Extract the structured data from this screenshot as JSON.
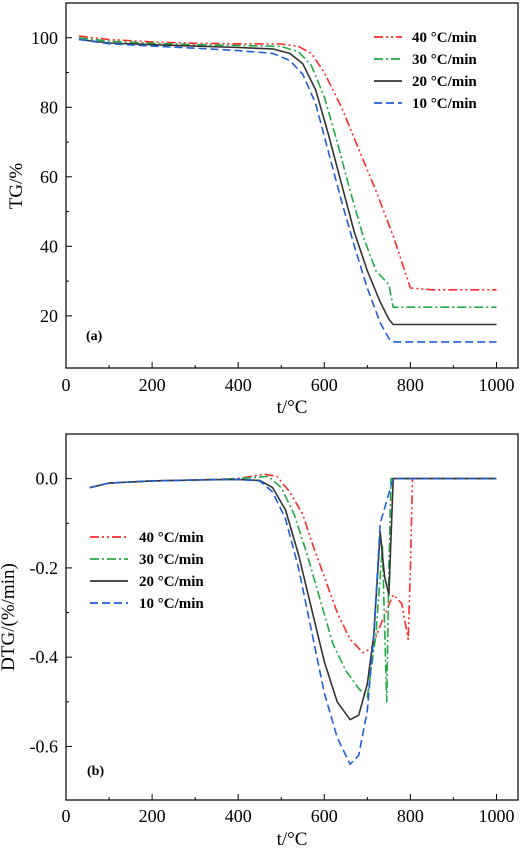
{
  "chart_data": [
    {
      "type": "line",
      "panel_label": "(a)",
      "xlabel": "t/°C",
      "ylabel": "TG/%",
      "xlim": [
        0,
        1050
      ],
      "ylim": [
        5,
        110
      ],
      "xticks": [
        0,
        200,
        400,
        600,
        800,
        1000
      ],
      "yticks": [
        20,
        40,
        60,
        80,
        100
      ],
      "grid": false,
      "legend_position": "top-right",
      "series": [
        {
          "name": "40 °C/min",
          "color": "#ff2a2a",
          "dash": "dash-dot-dot",
          "x": [
            30,
            100,
            200,
            300,
            400,
            500,
            540,
            570,
            600,
            640,
            680,
            720,
            760,
            800,
            850,
            900,
            950,
            1000
          ],
          "y": [
            100.5,
            99.5,
            98.8,
            98.4,
            98.3,
            98.2,
            97.5,
            95.5,
            90,
            80,
            68,
            56,
            43,
            28,
            27.5,
            27.5,
            27.5,
            27.5
          ]
        },
        {
          "name": "30 °C/min",
          "color": "#22aa44",
          "dash": "dash-dot",
          "x": [
            30,
            100,
            200,
            300,
            400,
            500,
            540,
            570,
            600,
            630,
            660,
            690,
            720,
            750,
            760,
            800,
            900,
            1000
          ],
          "y": [
            100,
            99,
            98.4,
            98,
            97.8,
            97.5,
            96,
            92,
            83,
            70,
            56,
            43,
            33,
            29,
            22.5,
            22.5,
            22.5,
            22.5
          ]
        },
        {
          "name": "20 °C/min",
          "color": "#333333",
          "dash": "solid",
          "x": [
            30,
            100,
            200,
            300,
            400,
            480,
            520,
            550,
            580,
            610,
            640,
            670,
            700,
            730,
            750,
            760,
            800,
            900,
            1000
          ],
          "y": [
            99.5,
            98.5,
            98,
            97.6,
            97.2,
            96.8,
            95.5,
            92.5,
            85,
            72,
            58,
            44,
            33,
            24,
            19,
            17.5,
            17.5,
            17.5,
            17.5
          ]
        },
        {
          "name": "10 °C/min",
          "color": "#1f5fd6",
          "dash": "dash",
          "x": [
            30,
            100,
            200,
            300,
            400,
            480,
            520,
            550,
            580,
            610,
            640,
            670,
            700,
            730,
            750,
            760,
            800,
            900,
            1000
          ],
          "y": [
            99.5,
            98.3,
            97.6,
            97,
            96.3,
            95.5,
            93.5,
            89.5,
            81,
            67,
            53,
            40,
            28,
            18,
            13.5,
            12.5,
            12.5,
            12.5,
            12.5
          ]
        }
      ]
    },
    {
      "type": "line",
      "panel_label": "(b)",
      "xlabel": "t/°C",
      "ylabel": "DTG/(%/min)",
      "xlim": [
        0,
        1050
      ],
      "ylim": [
        -0.72,
        0.1
      ],
      "xticks": [
        0,
        200,
        400,
        600,
        800,
        1000
      ],
      "yticks": [
        0.0,
        -0.2,
        -0.4,
        -0.6
      ],
      "ytick_labels": [
        "0.0",
        "-0.2",
        "-0.4",
        "-0.6"
      ],
      "grid": false,
      "legend_position": "middle-left",
      "series": [
        {
          "name": "40 °C/min",
          "color": "#ff2a2a",
          "dash": "dash-dot-dot",
          "x": [
            55,
            100,
            200,
            300,
            400,
            460,
            490,
            520,
            550,
            570,
            600,
            630,
            660,
            690,
            710,
            730,
            760,
            780,
            795,
            800,
            805,
            830,
            900,
            1000
          ],
          "y": [
            -0.02,
            -0.01,
            -0.005,
            -0.003,
            0.0,
            0.01,
            0.005,
            -0.03,
            -0.08,
            -0.14,
            -0.22,
            -0.3,
            -0.36,
            -0.39,
            -0.38,
            -0.33,
            -0.26,
            -0.28,
            -0.36,
            -0.2,
            0.0,
            0.0,
            0.0,
            0.0
          ]
        },
        {
          "name": "30 °C/min",
          "color": "#22aa44",
          "dash": "dash-dot",
          "x": [
            55,
            100,
            200,
            300,
            400,
            470,
            500,
            530,
            560,
            590,
            620,
            650,
            680,
            700,
            720,
            735,
            745,
            750,
            755,
            800,
            900,
            1000
          ],
          "y": [
            -0.02,
            -0.01,
            -0.005,
            -0.003,
            0.0,
            0.005,
            -0.02,
            -0.08,
            -0.17,
            -0.27,
            -0.37,
            -0.43,
            -0.47,
            -0.49,
            -0.35,
            -0.15,
            -0.5,
            -0.2,
            0.0,
            0.0,
            0.0,
            0.0
          ]
        },
        {
          "name": "20 °C/min",
          "color": "#333333",
          "dash": "solid",
          "x": [
            55,
            100,
            200,
            300,
            400,
            450,
            480,
            510,
            540,
            570,
            600,
            630,
            660,
            680,
            700,
            715,
            730,
            740,
            750,
            760,
            800,
            900,
            1000
          ],
          "y": [
            -0.02,
            -0.01,
            -0.005,
            -0.003,
            -0.002,
            -0.004,
            -0.02,
            -0.07,
            -0.17,
            -0.29,
            -0.41,
            -0.5,
            -0.54,
            -0.53,
            -0.46,
            -0.35,
            -0.12,
            -0.22,
            -0.26,
            0.0,
            0.0,
            0.0,
            0.0
          ]
        },
        {
          "name": "10 °C/min",
          "color": "#1f5fd6",
          "dash": "dash",
          "x": [
            55,
            100,
            200,
            300,
            400,
            450,
            480,
            510,
            540,
            570,
            600,
            630,
            660,
            680,
            700,
            715,
            730,
            745,
            760,
            800,
            900,
            1000
          ],
          "y": [
            -0.02,
            -0.01,
            -0.005,
            -0.003,
            -0.002,
            -0.005,
            -0.03,
            -0.09,
            -0.2,
            -0.34,
            -0.48,
            -0.58,
            -0.64,
            -0.62,
            -0.52,
            -0.35,
            -0.1,
            -0.05,
            0.0,
            0.0,
            0.0,
            0.0
          ]
        }
      ]
    }
  ]
}
